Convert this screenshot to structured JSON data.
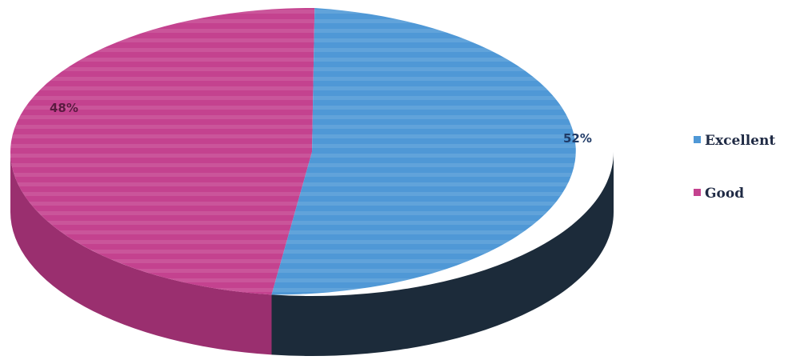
{
  "chart_data": {
    "type": "pie",
    "style": "3d",
    "legend_position": "right",
    "slices": [
      {
        "name": "Excellent",
        "value": 52,
        "label": "52%",
        "color": "#4f98d6",
        "side_color": "#1c2b3a"
      },
      {
        "name": "Good",
        "value": 48,
        "label": "48%",
        "color": "#c4428f",
        "side_color": "#9a2f6f"
      }
    ]
  },
  "label_colors": {
    "excellent": "#1f3a66",
    "good": "#5a1a40"
  }
}
